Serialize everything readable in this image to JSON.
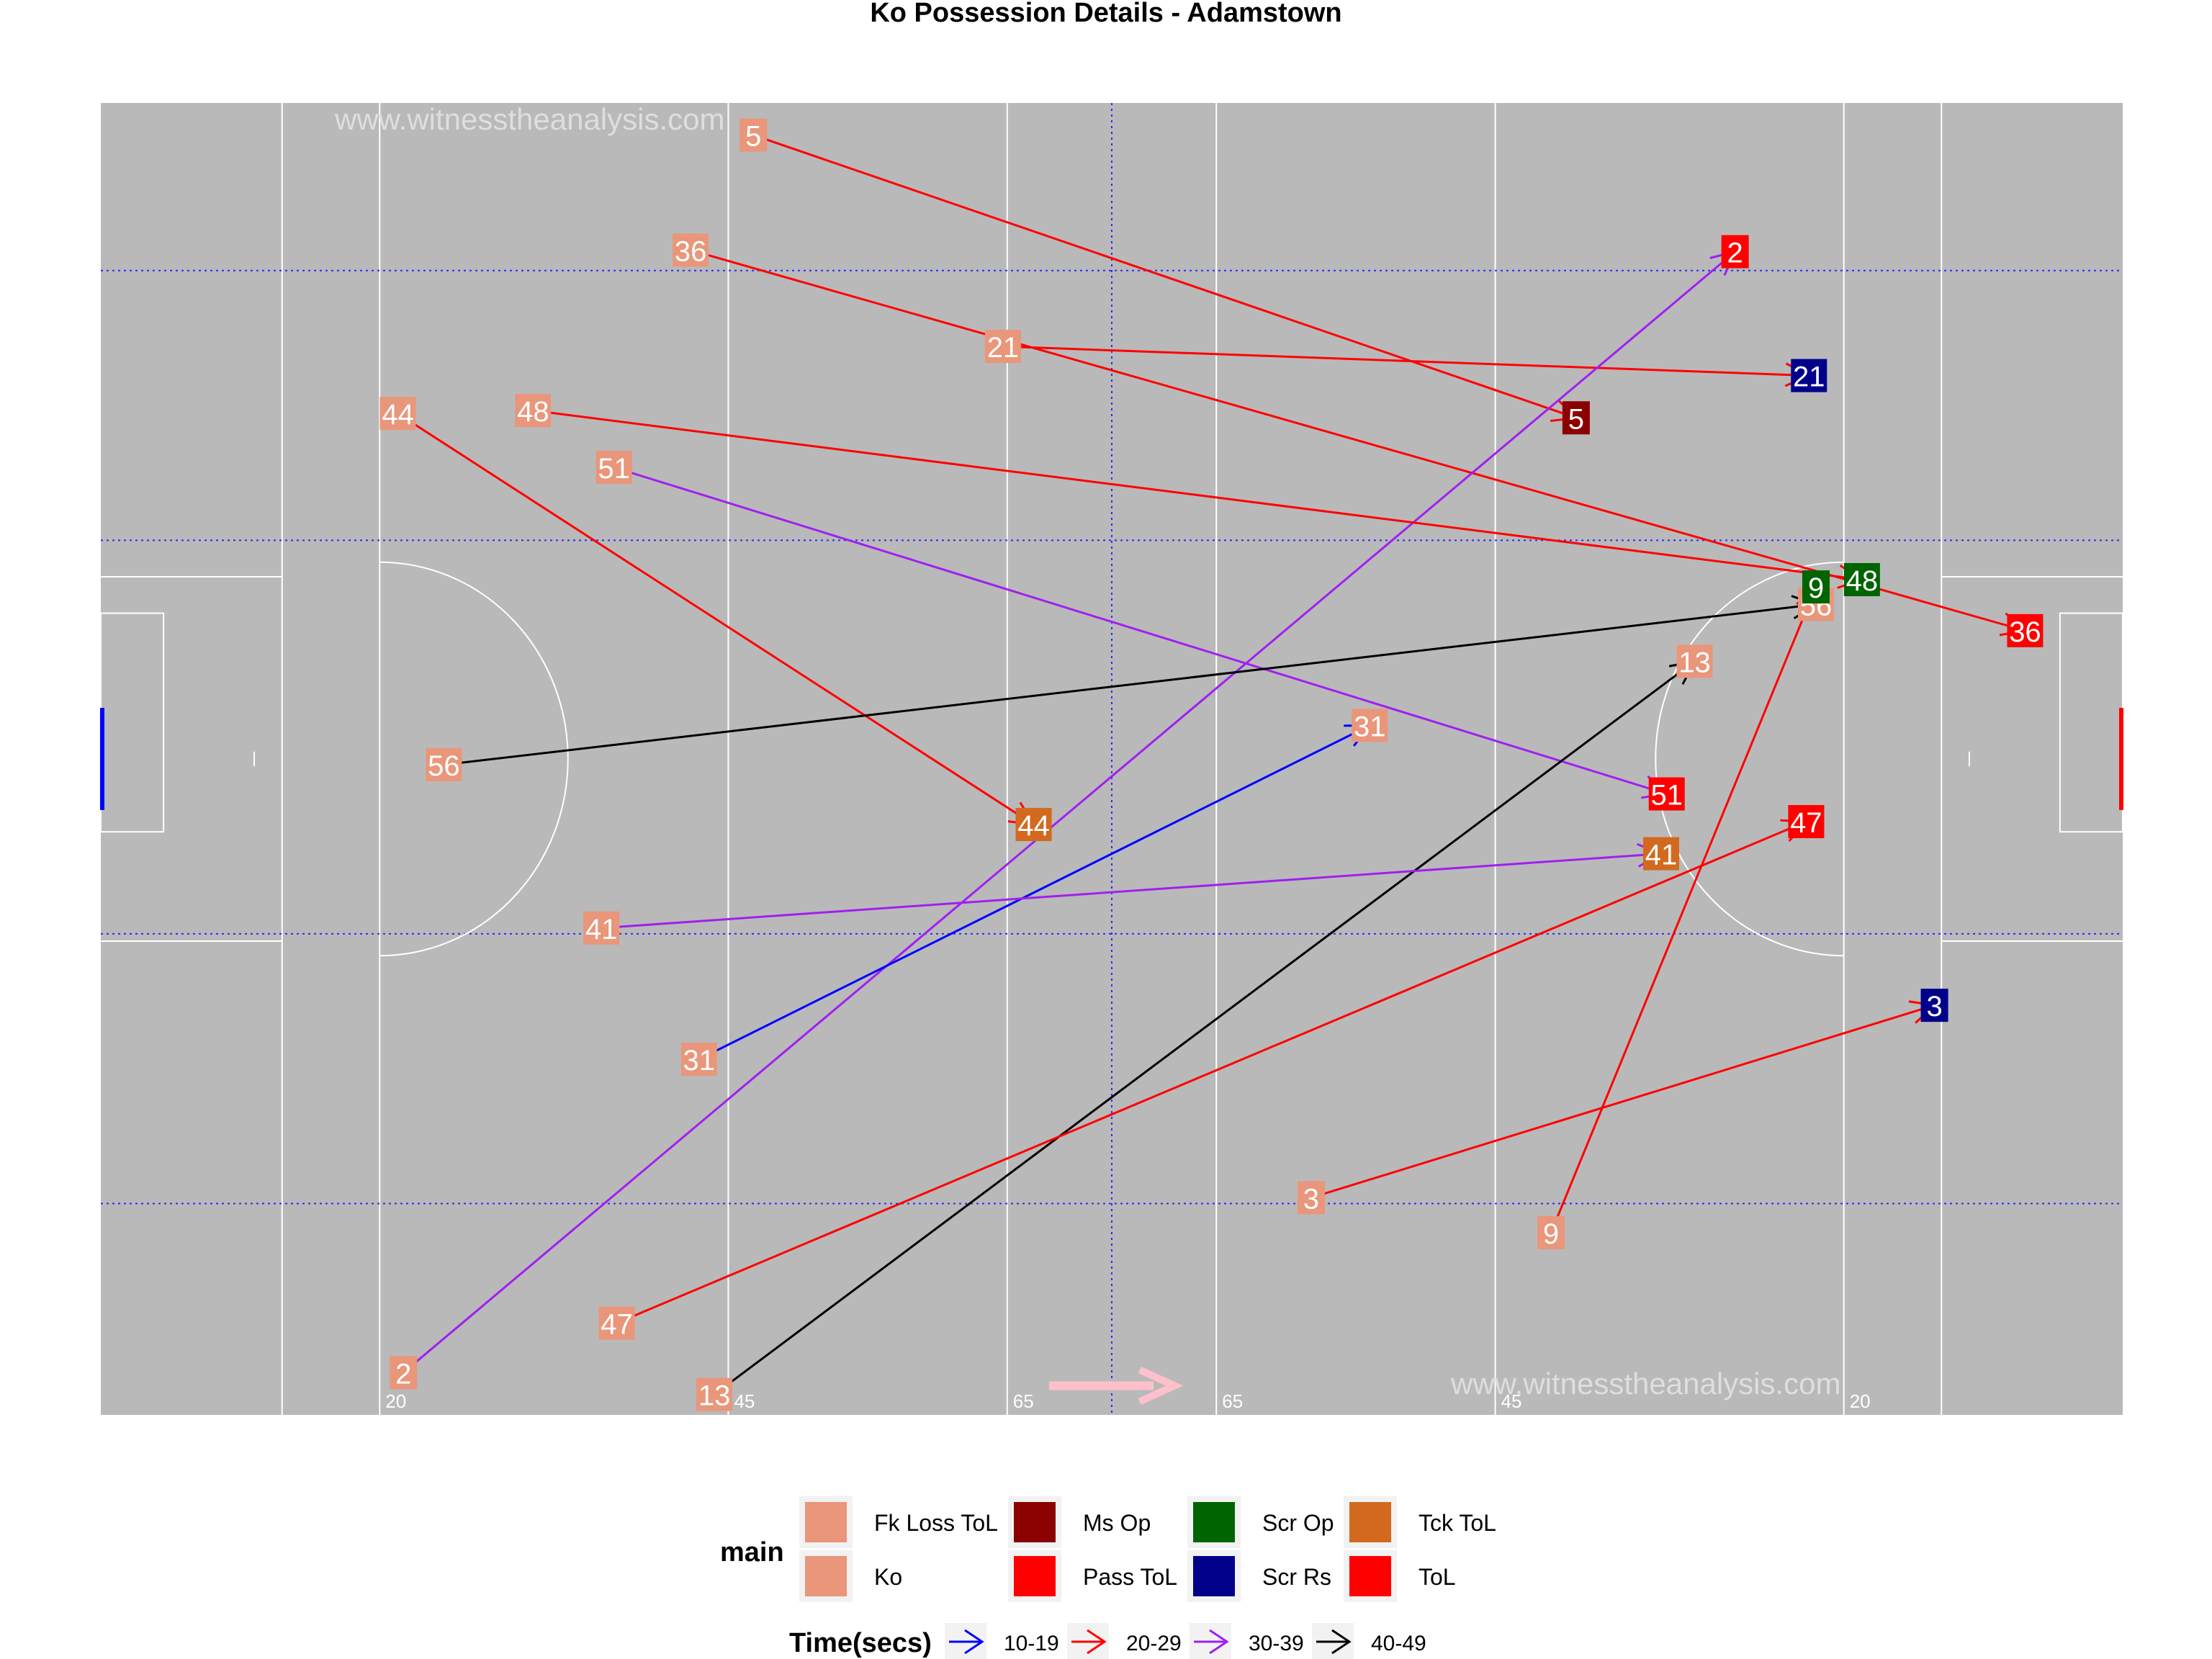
{
  "chart_data": {
    "type": "scatter",
    "title": "Ko Possession Details - Adamstown",
    "watermark": "www.witnesstheanalysis.com",
    "xlim": [
      0,
      145
    ],
    "ylim": [
      0,
      90
    ],
    "pitch_color": "#b9b9b9",
    "line_labels": [
      {
        "x": 20,
        "label": "20"
      },
      {
        "x": 45,
        "label": "45"
      },
      {
        "x": 65,
        "label": "65"
      },
      {
        "x": 80,
        "label": "65"
      },
      {
        "x": 100,
        "label": "45"
      },
      {
        "x": 125,
        "label": "20"
      }
    ],
    "colors": {
      "Fk Loss ToL": "#e9967a",
      "Ko": "#e9967a",
      "Ms Op": "#8b0000",
      "Pass ToL": "#ff0000",
      "Scr Op": "#006400",
      "Scr Rs": "#00008b",
      "Tck ToL": "#d2691e",
      "ToL": "#ff0000"
    },
    "time_colors": {
      "10-19": "#0000ff",
      "20-29": "#ff0000",
      "30-39": "#a020f0",
      "40-49": "#000000"
    },
    "legend": {
      "main_title": "main",
      "main_entries": [
        "Fk Loss ToL",
        "Ko",
        "Ms Op",
        "Pass ToL",
        "Scr Op",
        "Scr Rs",
        "Tck ToL",
        "ToL"
      ],
      "time_title": "Time(secs)",
      "time_entries": [
        "10-19",
        "20-29",
        "30-39",
        "40-49"
      ],
      "placement": "bottom"
    },
    "possessions": [
      {
        "id": "5",
        "start": [
          46.8,
          87.8
        ],
        "end": [
          105.8,
          68.4
        ],
        "time": "20-29",
        "end_type": "Ms Op"
      },
      {
        "id": "36",
        "start": [
          42.3,
          79.9
        ],
        "end": [
          138.0,
          53.8
        ],
        "time": "20-29",
        "end_type": "ToL"
      },
      {
        "id": "21",
        "start": [
          64.7,
          73.3
        ],
        "end": [
          122.5,
          71.3
        ],
        "time": "20-29",
        "end_type": "Scr Rs"
      },
      {
        "id": "2",
        "start": [
          21.7,
          2.9
        ],
        "end": [
          117.2,
          79.8
        ],
        "time": "30-39",
        "end_type": "Pass ToL"
      },
      {
        "id": "44",
        "start": [
          21.3,
          68.7
        ],
        "end": [
          66.9,
          40.5
        ],
        "time": "20-29",
        "end_type": "Tck ToL"
      },
      {
        "id": "48",
        "start": [
          31.0,
          68.9
        ],
        "end": [
          126.3,
          57.3
        ],
        "time": "20-29",
        "end_type": "Scr Op"
      },
      {
        "id": "51",
        "start": [
          36.8,
          65.0
        ],
        "end": [
          112.3,
          42.6
        ],
        "time": "30-39",
        "end_type": "ToL"
      },
      {
        "id": "56",
        "start": [
          24.6,
          44.6
        ],
        "end": [
          123.0,
          55.6
        ],
        "time": "40-49",
        "end_type": "Ko"
      },
      {
        "id": "9",
        "start": [
          104.0,
          12.5
        ],
        "end": [
          123.0,
          56.8
        ],
        "time": "20-29",
        "end_type": "Scr Op"
      },
      {
        "id": "13",
        "start": [
          44.0,
          1.4
        ],
        "end": [
          114.3,
          51.7
        ],
        "time": "40-49",
        "end_type": "Ko"
      },
      {
        "id": "31",
        "start": [
          42.9,
          24.4
        ],
        "end": [
          91.0,
          47.3
        ],
        "time": "10-19",
        "end_type": "Ko"
      },
      {
        "id": "41",
        "start": [
          35.9,
          33.4
        ],
        "end": [
          111.9,
          38.5
        ],
        "time": "30-39",
        "end_type": "Tck ToL"
      },
      {
        "id": "47",
        "start": [
          37.0,
          6.3
        ],
        "end": [
          122.3,
          40.7
        ],
        "time": "20-29",
        "end_type": "Pass ToL"
      },
      {
        "id": "3",
        "start": [
          86.8,
          14.9
        ],
        "end": [
          131.5,
          28.1
        ],
        "time": "20-29",
        "end_type": "Scr Rs"
      }
    ]
  }
}
